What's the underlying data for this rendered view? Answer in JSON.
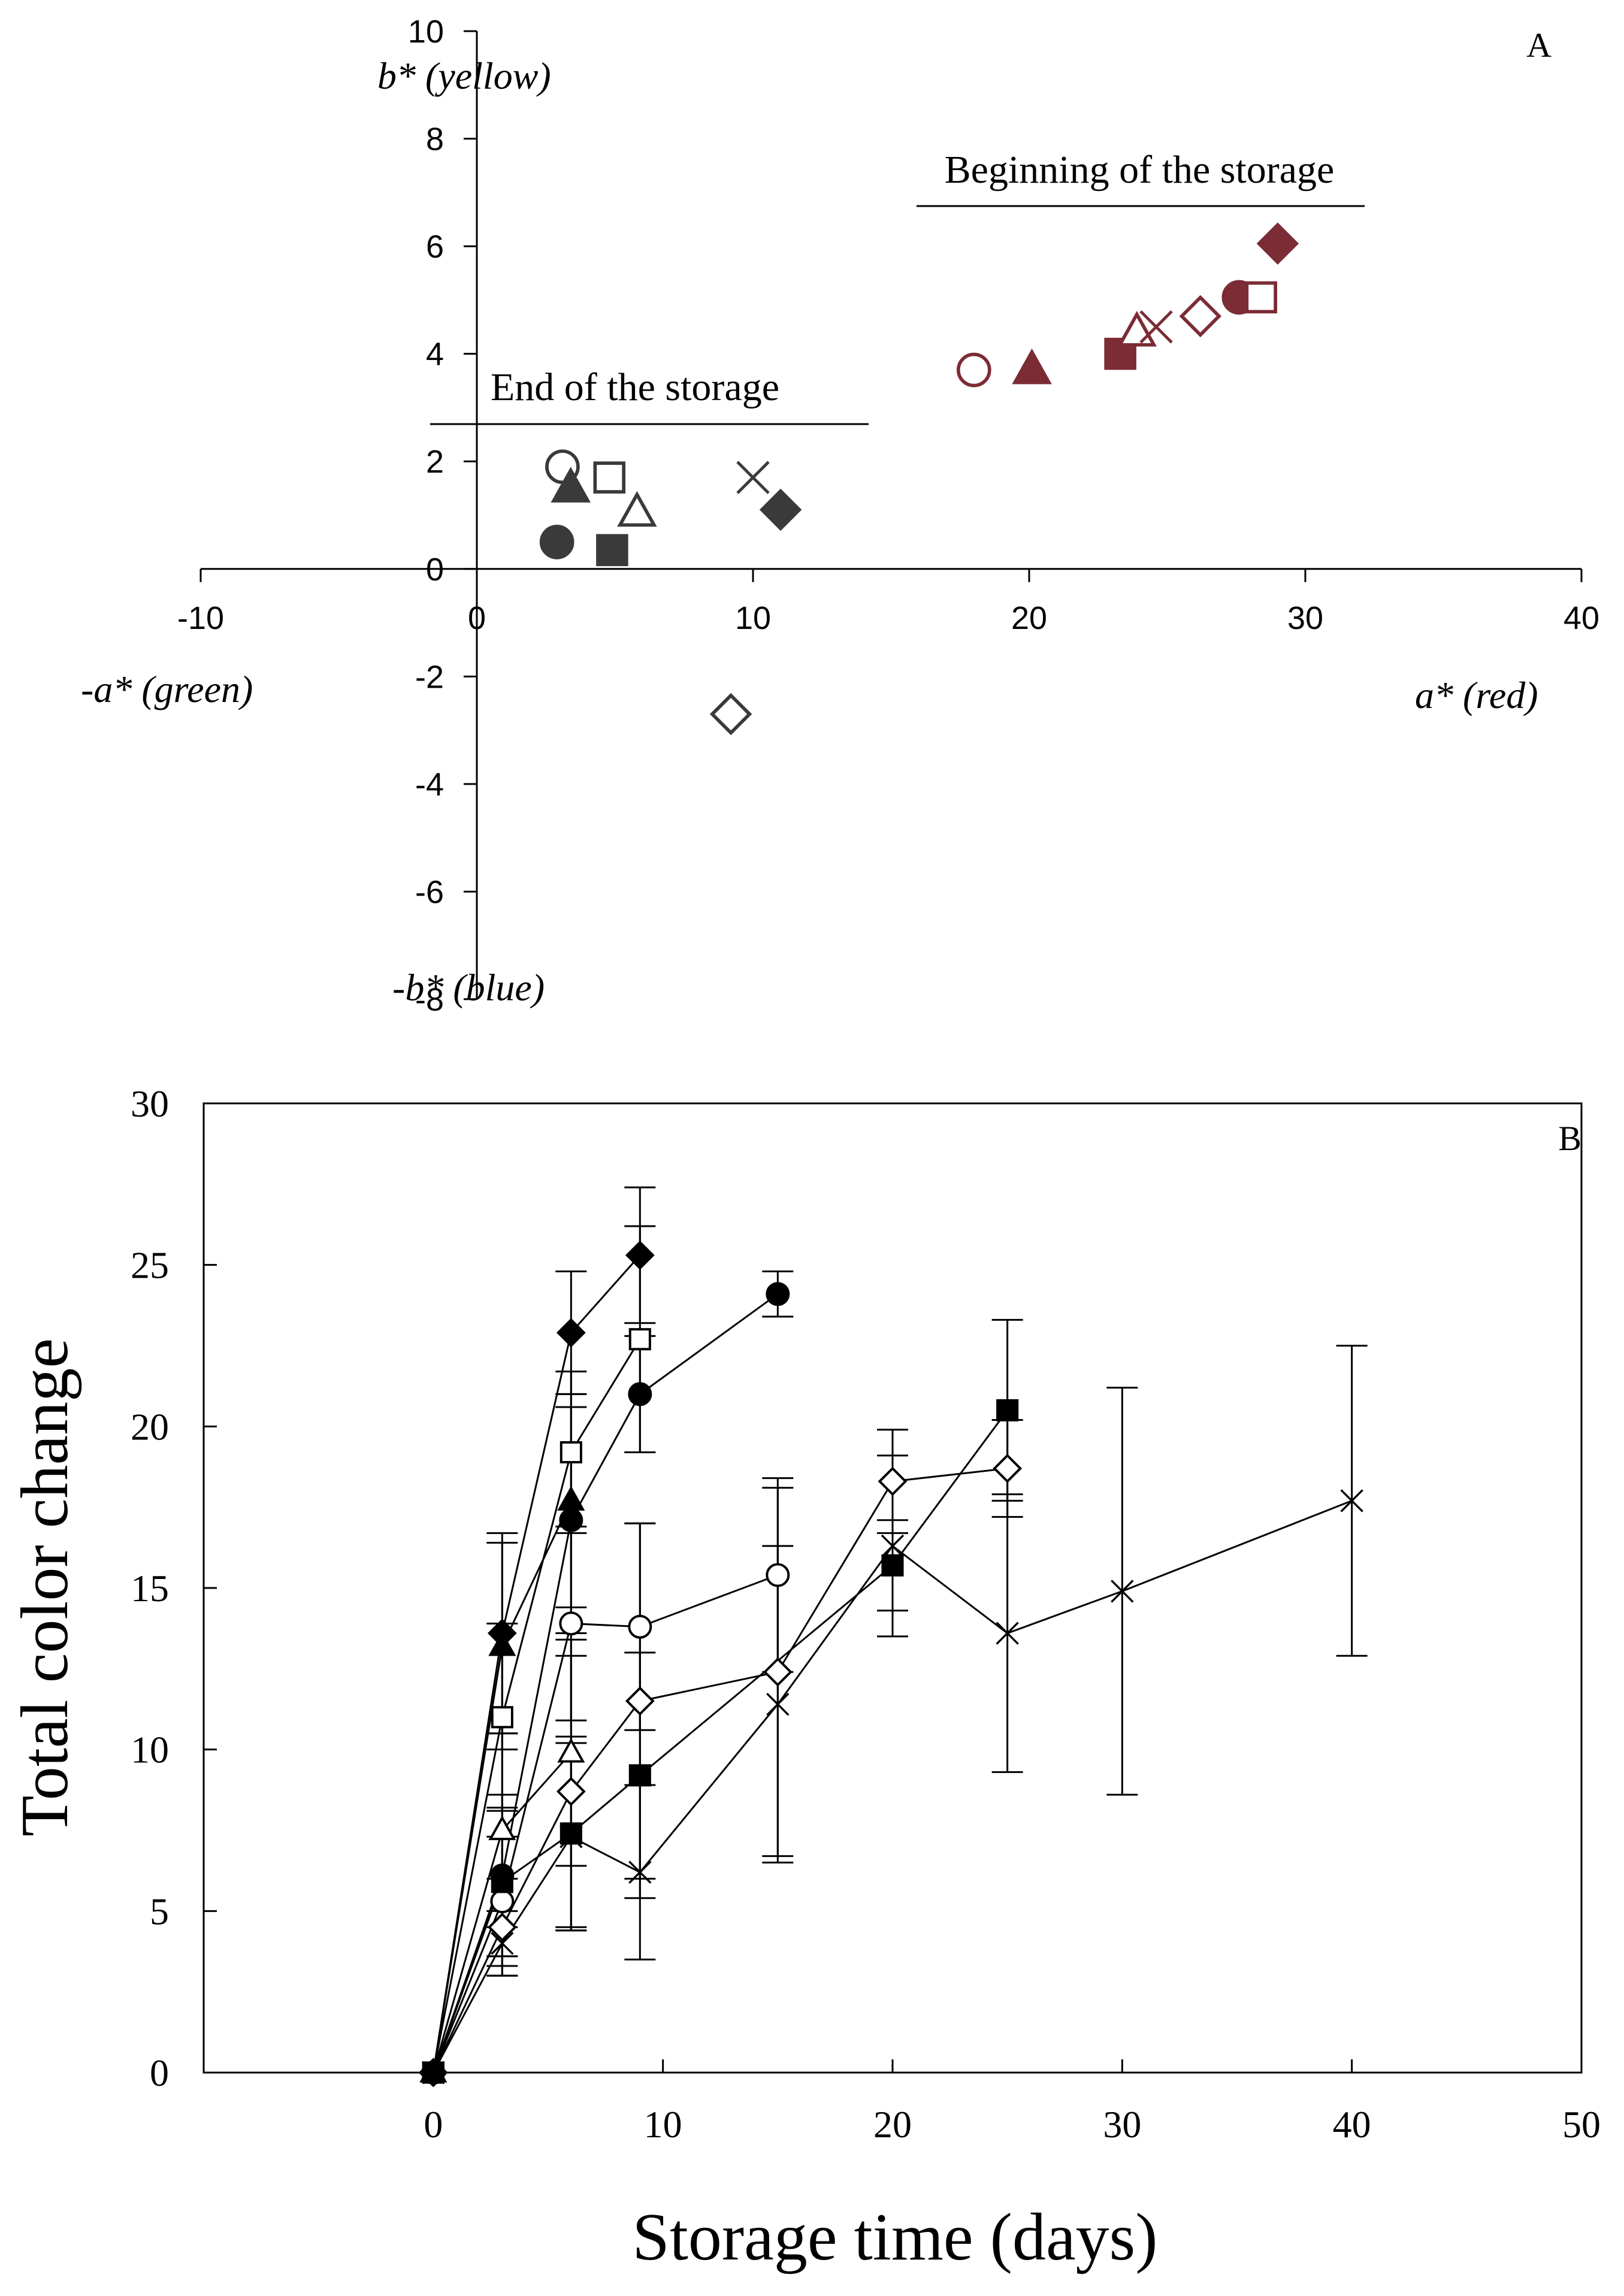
{
  "chart_data": [
    {
      "id": "A",
      "type": "scatter",
      "panel_label": "A",
      "xlim": [
        -10,
        40
      ],
      "ylim": [
        -8,
        10
      ],
      "xticks": [
        -10,
        0,
        10,
        20,
        30,
        40
      ],
      "yticks": [
        -8,
        -6,
        -4,
        -2,
        0,
        2,
        4,
        6,
        8,
        10
      ],
      "tick_labels_x": [
        "-10",
        "0",
        "10",
        "20",
        "30",
        "40"
      ],
      "tick_labels_y": [
        "-8",
        "-6",
        "-4",
        "-2",
        "0",
        "2",
        "4",
        "6",
        "8",
        "10"
      ],
      "axis_labels": {
        "pos_y": "b* (yellow)",
        "neg_y": "-b* (blue)",
        "neg_x": "-a* (green)",
        "pos_x": "a* (red)"
      },
      "annotations": {
        "beginning": "Beginning of the storage",
        "end": "End of the storage"
      },
      "colors": {
        "beginning": "#7b2c35",
        "end": "#3a3a3a"
      },
      "groups": [
        {
          "key": "end",
          "points": [
            {
              "marker": "circle-open",
              "x": 3.1,
              "y": 1.9
            },
            {
              "marker": "triangle-filled",
              "x": 3.4,
              "y": 1.5
            },
            {
              "marker": "circle-filled",
              "x": 2.9,
              "y": 0.5
            },
            {
              "marker": "square-open",
              "x": 4.8,
              "y": 1.7
            },
            {
              "marker": "square-filled",
              "x": 4.9,
              "y": 0.35
            },
            {
              "marker": "triangle-open",
              "x": 5.8,
              "y": 1.05
            },
            {
              "marker": "cross",
              "x": 10.0,
              "y": 1.7
            },
            {
              "marker": "diamond-filled",
              "x": 11.0,
              "y": 1.1
            },
            {
              "marker": "diamond-open",
              "x": 9.2,
              "y": -2.7
            }
          ]
        },
        {
          "key": "beginning",
          "points": [
            {
              "marker": "circle-open",
              "x": 18.0,
              "y": 3.7
            },
            {
              "marker": "triangle-filled",
              "x": 20.1,
              "y": 3.7
            },
            {
              "marker": "square-filled",
              "x": 23.3,
              "y": 4.0
            },
            {
              "marker": "triangle-open",
              "x": 23.9,
              "y": 4.4
            },
            {
              "marker": "cross",
              "x": 24.6,
              "y": 4.5
            },
            {
              "marker": "diamond-open",
              "x": 26.2,
              "y": 4.7
            },
            {
              "marker": "circle-filled",
              "x": 27.6,
              "y": 5.05
            },
            {
              "marker": "square-open",
              "x": 28.4,
              "y": 5.05
            },
            {
              "marker": "diamond-filled",
              "x": 29.0,
              "y": 6.05
            }
          ]
        }
      ]
    },
    {
      "id": "B",
      "type": "line",
      "panel_label": "B",
      "xlabel": "Storage time (days)",
      "ylabel": "Total color change",
      "xlim": [
        -10,
        50
      ],
      "ylim": [
        0,
        30
      ],
      "xticks": [
        0,
        10,
        20,
        30,
        40,
        50
      ],
      "yticks": [
        0,
        5,
        10,
        15,
        20,
        25,
        30
      ],
      "tick_labels_x": [
        "0",
        "10",
        "20",
        "30",
        "40",
        "50"
      ],
      "tick_labels_y": [
        "0",
        "5",
        "10",
        "15",
        "20",
        "25",
        "30"
      ],
      "series": [
        {
          "marker": "diamond-filled",
          "x": [
            0,
            3,
            6,
            9
          ],
          "y": [
            0,
            13.6,
            22.9,
            25.3
          ],
          "err": [
            0,
            3.1,
            1.9,
            2.1
          ]
        },
        {
          "marker": "triangle-filled",
          "x": [
            0,
            3,
            6
          ],
          "y": [
            0,
            13.2,
            17.7
          ],
          "err": [
            0,
            3.2,
            3.3
          ]
        },
        {
          "marker": "square-open",
          "x": [
            0,
            3,
            6,
            9
          ],
          "y": [
            0,
            11.0,
            19.2,
            22.7
          ],
          "err": [
            0,
            2.9,
            2.5,
            3.5
          ]
        },
        {
          "marker": "circle-filled",
          "x": [
            0,
            3,
            6,
            9,
            15
          ],
          "y": [
            0,
            6.1,
            17.1,
            21.0,
            24.1
          ],
          "err": [
            0,
            2.5,
            3.5,
            1.8,
            0.7
          ]
        },
        {
          "marker": "circle-open",
          "x": [
            0,
            3,
            6,
            9,
            15
          ],
          "y": [
            0,
            5.3,
            13.9,
            13.8,
            15.4
          ],
          "err": [
            0,
            2.0,
            3.0,
            3.2,
            3.0
          ]
        },
        {
          "marker": "triangle-open",
          "x": [
            0,
            3,
            6
          ],
          "y": [
            0,
            7.5,
            9.9
          ],
          "err": [
            0,
            3.0,
            3.5
          ]
        },
        {
          "marker": "diamond-open",
          "x": [
            0,
            3,
            6,
            9,
            15,
            20,
            25
          ],
          "y": [
            0,
            4.5,
            8.7,
            11.5,
            12.4,
            18.3,
            18.7
          ],
          "err": [
            0,
            1.5,
            4.2,
            5.5,
            5.7,
            1.6,
            1.5
          ]
        },
        {
          "marker": "square-filled",
          "x": [
            0,
            3,
            6,
            9,
            20,
            25
          ],
          "y": [
            0,
            5.9,
            7.4,
            9.2,
            15.7,
            20.5
          ],
          "err": [
            0,
            2.3,
            3.0,
            3.8,
            1.4,
            2.8
          ]
        },
        {
          "marker": "cross",
          "x": [
            0,
            3,
            6,
            9,
            15,
            20,
            25,
            30,
            40
          ],
          "y": [
            0,
            4.0,
            7.3,
            6.2,
            11.4,
            16.3,
            13.6,
            14.9,
            17.7
          ],
          "err": [
            0,
            1.0,
            2.9,
            2.7,
            4.9,
            2.8,
            4.3,
            6.3,
            4.8
          ]
        }
      ]
    }
  ]
}
